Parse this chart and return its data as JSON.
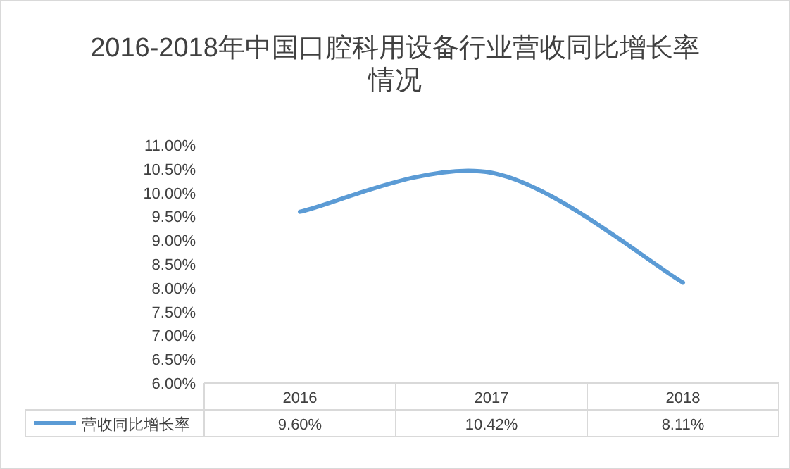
{
  "chart_data": {
    "type": "line",
    "title": "2016-2018年中国口腔科用设备行业营收同比增长率情况",
    "categories": [
      "2016",
      "2017",
      "2018"
    ],
    "series": [
      {
        "name": "营收同比增长率",
        "color": "#5b9bd5",
        "values": [
          9.6,
          10.42,
          8.11
        ],
        "value_labels": [
          "9.60%",
          "10.42%",
          "8.11%"
        ]
      }
    ],
    "ylim": [
      6,
      11
    ],
    "yticks": [
      {
        "value": 6,
        "label": "6.00%"
      },
      {
        "value": 6.5,
        "label": "6.50%"
      },
      {
        "value": 7,
        "label": "7.00%"
      },
      {
        "value": 7.5,
        "label": "7.50%"
      },
      {
        "value": 8,
        "label": "8.00%"
      },
      {
        "value": 8.5,
        "label": "8.50%"
      },
      {
        "value": 9,
        "label": "9.00%"
      },
      {
        "value": 9.5,
        "label": "9.50%"
      },
      {
        "value": 10,
        "label": "10.00%"
      },
      {
        "value": 10.5,
        "label": "10.50%"
      },
      {
        "value": 11,
        "label": "11.00%"
      }
    ],
    "legend": "bottom left",
    "marker": "none",
    "line_style": "solid"
  }
}
